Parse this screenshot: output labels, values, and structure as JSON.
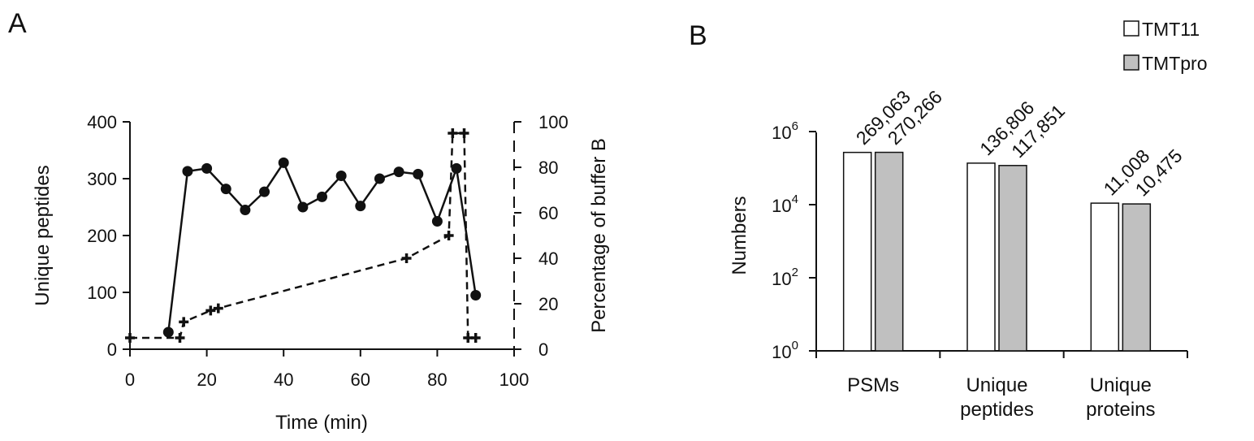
{
  "chart_data": [
    {
      "type": "line",
      "panel": "A",
      "xlabel": "Time (min)",
      "ylabel": "Unique peptides",
      "y2label": "Percentage of buffer B",
      "xlim": [
        0,
        100
      ],
      "ylim": [
        0,
        400
      ],
      "y2lim": [
        0,
        100
      ],
      "x_ticks": [
        "0",
        "20",
        "40",
        "60",
        "80",
        "100"
      ],
      "y_ticks": [
        "0",
        "100",
        "200",
        "300",
        "400"
      ],
      "y2_ticks": [
        "0",
        "20",
        "40",
        "60",
        "80",
        "100"
      ],
      "grid": false,
      "series": [
        {
          "axis": "left",
          "style": "solid",
          "marker": "circle",
          "x": [
            10,
            15,
            20,
            25,
            30,
            35,
            40,
            45,
            50,
            55,
            60,
            65,
            70,
            75,
            80,
            85,
            90
          ],
          "y": [
            30,
            313,
            318,
            282,
            245,
            277,
            328,
            250,
            268,
            305,
            252,
            300,
            312,
            308,
            225,
            318,
            95
          ]
        },
        {
          "axis": "right",
          "style": "dashed",
          "marker": "plus",
          "x": [
            0,
            13,
            14,
            21,
            23,
            72,
            83,
            84,
            87,
            88,
            90
          ],
          "y": [
            5,
            5,
            12,
            17,
            18,
            40,
            50,
            95,
            95,
            5,
            5
          ]
        }
      ]
    },
    {
      "type": "bar",
      "panel": "B",
      "ylabel": "Numbers",
      "yscale": "log",
      "ylim": [
        1,
        1000000
      ],
      "y_ticks": [
        {
          "base": "10",
          "exp": "0",
          "value": 1
        },
        {
          "base": "10",
          "exp": "2",
          "value": 100
        },
        {
          "base": "10",
          "exp": "4",
          "value": 10000
        },
        {
          "base": "10",
          "exp": "6",
          "value": 1000000
        }
      ],
      "categories": [
        [
          "PSMs"
        ],
        [
          "Unique",
          "peptides"
        ],
        [
          "Unique",
          "proteins"
        ]
      ],
      "legend_position": "top-right",
      "series": [
        {
          "name": "TMT11",
          "color": "#ffffff",
          "values": [
            269063,
            136806,
            11008
          ],
          "labels": [
            "269,063",
            "136,806",
            "11,008"
          ]
        },
        {
          "name": "TMTpro",
          "color": "#c0c0c0",
          "values": [
            270266,
            117851,
            10475
          ],
          "labels": [
            "270,266",
            "117,851",
            "10,475"
          ]
        }
      ]
    }
  ]
}
